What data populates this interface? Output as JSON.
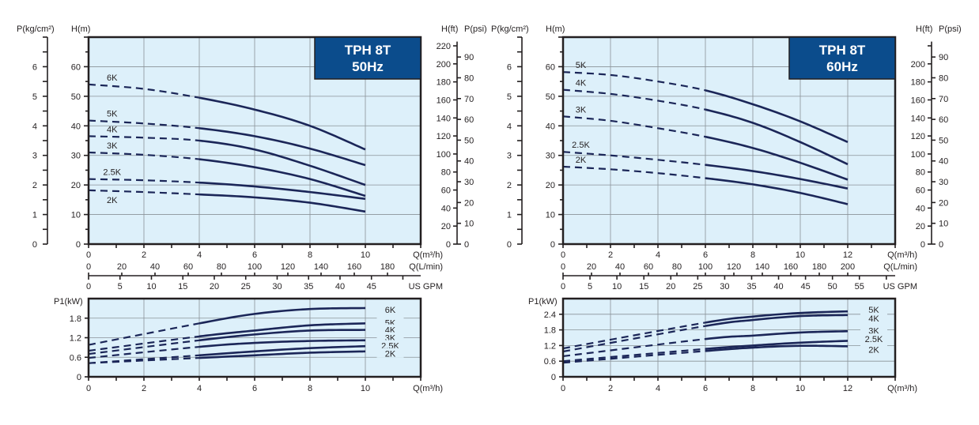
{
  "chart_data": [
    {
      "type": "line",
      "title_lines": [
        "TPH 8T",
        "50Hz"
      ],
      "ylabel": "H(m)",
      "ylabel_left2": "P(kg/cm²)",
      "ylabel_right": "H(ft)",
      "ylabel_right2": "P(psi)",
      "xlabel": "Q(m³/h)",
      "xlabel2": "Q(L/min)",
      "xlabel3": "US GPM",
      "xlim": [
        0,
        12
      ],
      "ylim": [
        0,
        70
      ],
      "xticks": [
        0,
        2,
        4,
        6,
        8,
        10
      ],
      "yticks": [
        0,
        10,
        20,
        30,
        40,
        50,
        60
      ],
      "kg_ticks": [
        0,
        1,
        2,
        3,
        4,
        5,
        6
      ],
      "ft_ticks": [
        0,
        20,
        40,
        60,
        80,
        100,
        120,
        140,
        160,
        180,
        200,
        220
      ],
      "psi_ticks": [
        0,
        10,
        20,
        30,
        40,
        50,
        60,
        70,
        80,
        90
      ],
      "lmin_ticks": [
        0,
        20,
        40,
        60,
        80,
        100,
        120,
        140,
        160,
        180
      ],
      "gpm_ticks": [
        0,
        5,
        10,
        15,
        20,
        25,
        30,
        35,
        40,
        45
      ],
      "grid": true,
      "solid_range": [
        4,
        10
      ],
      "x": [
        0,
        2,
        4,
        6,
        8,
        10
      ],
      "series": [
        {
          "name": "6K",
          "values": [
            54,
            52.5,
            49.5,
            45.5,
            40,
            32
          ]
        },
        {
          "name": "5K",
          "values": [
            41.8,
            40.8,
            39.2,
            36.5,
            32.3,
            26.7
          ]
        },
        {
          "name": "4K",
          "values": [
            36.5,
            36,
            35,
            32,
            26.5,
            20
          ]
        },
        {
          "name": "3K",
          "values": [
            31,
            30.2,
            28.7,
            26,
            22,
            16.3
          ]
        },
        {
          "name": "2.5K",
          "values": [
            22,
            21.6,
            20.8,
            19.5,
            17.6,
            15.3
          ]
        },
        {
          "name": "2K",
          "values": [
            18.2,
            17.6,
            16.8,
            15.8,
            14,
            11
          ]
        }
      ]
    },
    {
      "type": "line",
      "ylabel": "P1(kW)",
      "xlabel": "Q(m³/h)",
      "xlim": [
        0,
        12
      ],
      "ylim": [
        0,
        2.4
      ],
      "xticks": [
        0,
        2,
        4,
        6,
        8,
        10
      ],
      "yticks": [
        0,
        0.6,
        1.2,
        1.8
      ],
      "grid": true,
      "solid_range": [
        4,
        10
      ],
      "x": [
        0,
        4,
        6,
        8,
        10
      ],
      "series": [
        {
          "name": "6K",
          "values": [
            0.98,
            1.64,
            1.93,
            2.08,
            2.11
          ]
        },
        {
          "name": "5K",
          "values": [
            0.8,
            1.24,
            1.42,
            1.58,
            1.64
          ]
        },
        {
          "name": "4K",
          "values": [
            0.7,
            1.12,
            1.3,
            1.42,
            1.44
          ]
        },
        {
          "name": "3K",
          "values": [
            0.58,
            0.92,
            1.04,
            1.1,
            1.12
          ]
        },
        {
          "name": "2.5K",
          "values": [
            0.42,
            0.66,
            0.78,
            0.88,
            0.94
          ]
        },
        {
          "name": "2K",
          "values": [
            0.42,
            0.58,
            0.66,
            0.74,
            0.78
          ]
        }
      ]
    },
    {
      "type": "line",
      "title_lines": [
        "TPH 8T",
        "60Hz"
      ],
      "ylabel": "H(m)",
      "ylabel_left2": "P(kg/cm²)",
      "ylabel_right": "H(ft)",
      "ylabel_right2": "P(psi)",
      "xlabel": "Q(m³/h)",
      "xlabel2": "Q(L/min)",
      "xlabel3": "US GPM",
      "xlim": [
        0,
        14
      ],
      "ylim": [
        0,
        70
      ],
      "xticks": [
        0,
        2,
        4,
        6,
        8,
        10,
        12
      ],
      "yticks": [
        0,
        10,
        20,
        30,
        40,
        50,
        60
      ],
      "kg_ticks": [
        0,
        1,
        2,
        3,
        4,
        5,
        6
      ],
      "ft_ticks": [
        0,
        20,
        40,
        60,
        80,
        100,
        120,
        140,
        160,
        180,
        200
      ],
      "psi_ticks": [
        0,
        10,
        20,
        30,
        40,
        50,
        60,
        70,
        80,
        90
      ],
      "lmin_ticks": [
        0,
        20,
        40,
        60,
        80,
        100,
        120,
        140,
        160,
        180,
        200
      ],
      "gpm_ticks": [
        0,
        5,
        10,
        15,
        20,
        25,
        30,
        35,
        40,
        45,
        50,
        55
      ],
      "grid": true,
      "solid_range": [
        6,
        12
      ],
      "x": [
        0,
        2,
        4,
        6,
        8,
        10,
        12
      ],
      "series": [
        {
          "name": "5K",
          "values": [
            58.2,
            57.2,
            55,
            52,
            47.3,
            41.5,
            34.5
          ]
        },
        {
          "name": "4K",
          "values": [
            52.2,
            50.8,
            48.5,
            45.5,
            41,
            34.5,
            27
          ]
        },
        {
          "name": "3K",
          "values": [
            43.2,
            41.7,
            39.2,
            36.3,
            32.5,
            27.5,
            21.8
          ]
        },
        {
          "name": "2.5K",
          "values": [
            31.2,
            30,
            28.5,
            26.8,
            24.7,
            22,
            18.8
          ]
        },
        {
          "name": "2K",
          "values": [
            26.2,
            25.3,
            24,
            22.3,
            20.2,
            17.3,
            13.5
          ]
        }
      ]
    },
    {
      "type": "line",
      "ylabel": "P1(kW)",
      "xlabel": "Q(m³/h)",
      "xlim": [
        0,
        14
      ],
      "ylim": [
        0,
        3.0
      ],
      "xticks": [
        0,
        2,
        4,
        6,
        8,
        10,
        12
      ],
      "yticks": [
        0,
        0.6,
        1.2,
        1.8,
        2.4
      ],
      "grid": true,
      "solid_range": [
        6,
        12
      ],
      "x": [
        0,
        6,
        8,
        10,
        12
      ],
      "series": [
        {
          "name": "5K",
          "values": [
            1.09,
            2.08,
            2.31,
            2.45,
            2.51
          ]
        },
        {
          "name": "4K",
          "values": [
            0.97,
            1.95,
            2.18,
            2.33,
            2.37
          ]
        },
        {
          "name": "3K",
          "values": [
            0.79,
            1.45,
            1.58,
            1.7,
            1.75
          ]
        },
        {
          "name": "2.5K",
          "values": [
            0.6,
            1.07,
            1.2,
            1.31,
            1.38
          ]
        },
        {
          "name": "2K",
          "values": [
            0.54,
            0.99,
            1.12,
            1.19,
            1.17
          ]
        }
      ]
    }
  ],
  "colors": {
    "plot_bg": "#ddf0fa",
    "curve": "#1b2658",
    "title_box": "#0b4c8c"
  }
}
